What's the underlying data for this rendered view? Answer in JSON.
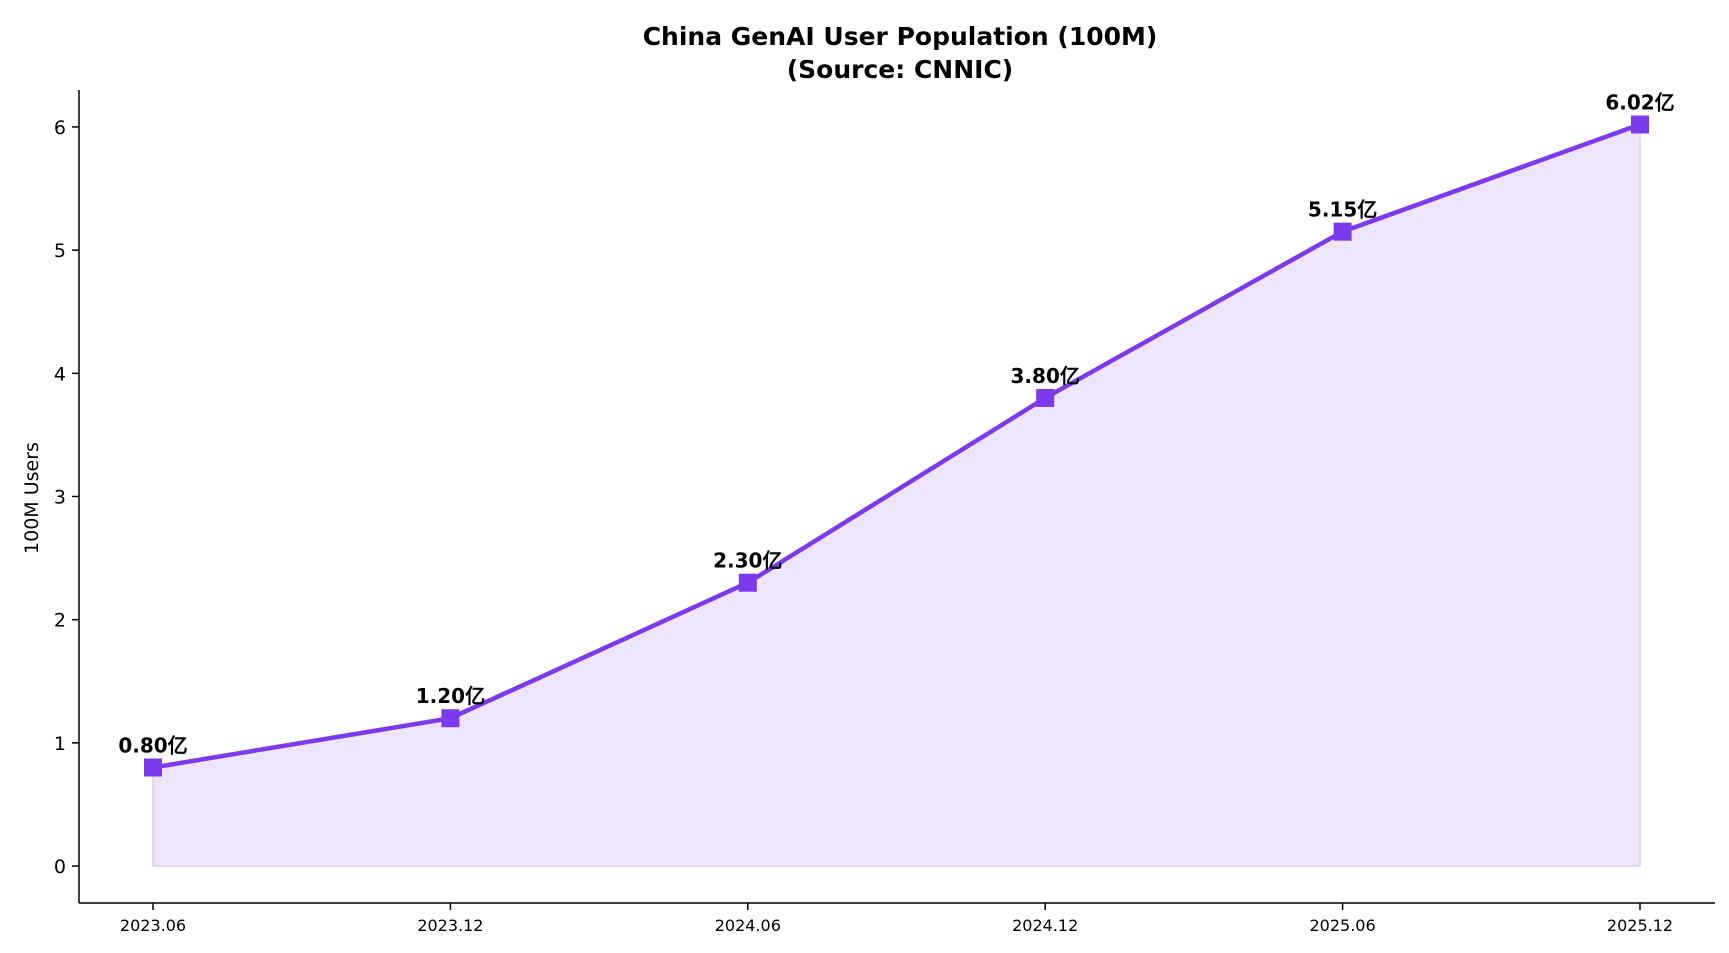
{
  "chart_data": {
    "type": "area",
    "title": "China GenAI User Population (100M)",
    "subtitle": "(Source: CNNIC)",
    "xlabel": "",
    "ylabel": "100M Users",
    "categories": [
      "2023.06",
      "2023.12",
      "2024.06",
      "2024.12",
      "2025.06",
      "2025.12"
    ],
    "values": [
      0.8,
      1.2,
      2.3,
      3.8,
      5.15,
      6.02
    ],
    "data_labels": [
      "0.80亿",
      "1.20亿",
      "2.30亿",
      "3.80亿",
      "5.15亿",
      "6.02亿"
    ],
    "ylim": [
      -0.3,
      6.3
    ],
    "yticks": [
      0,
      1,
      2,
      3,
      4,
      5,
      6
    ],
    "grid": false,
    "legend": "none",
    "line_color": "#7c3aed",
    "fill_color": "#ede5fc",
    "marker": "square"
  }
}
